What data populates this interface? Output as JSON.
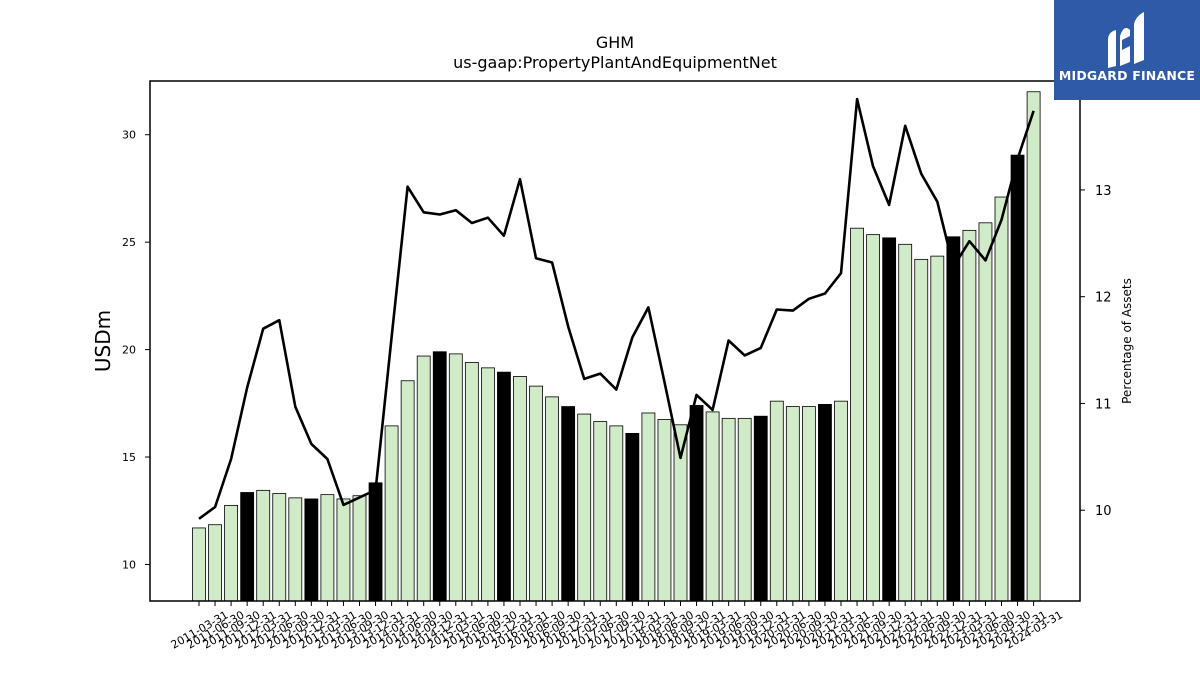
{
  "brand": {
    "name": "MIDGARD FINANCE",
    "logo_icon": "midgard-logo-icon",
    "bg_color": "#2e5aa8"
  },
  "chart_data": {
    "type": "bar",
    "title": "GHM",
    "subtitle": "us-gaap:PropertyPlantAndEquipmentNet",
    "ylabel": "USDm",
    "ylabel_right": "Percentage of Assets",
    "ylim": [
      8.3,
      32.5
    ],
    "ylim_right": [
      9.15,
      14.02
    ],
    "yticks": [
      10,
      15,
      20,
      25,
      30
    ],
    "yticks_right": [
      10,
      11,
      12,
      13
    ],
    "bar_fill": "#d1ebc8",
    "bar_highlight_fill": "#000000",
    "line_color": "#000000",
    "categories": [
      "2011-03-31",
      "2011-06-30",
      "2011-09-30",
      "2011-12-31",
      "2012-03-31",
      "2012-06-30",
      "2012-09-30",
      "2012-12-31",
      "2013-03-31",
      "2013-06-30",
      "2013-09-30",
      "2013-12-31",
      "2014-03-31",
      "2014-06-30",
      "2014-09-30",
      "2014-12-31",
      "2015-03-31",
      "2015-06-30",
      "2015-09-30",
      "2015-12-31",
      "2016-03-31",
      "2016-06-30",
      "2016-09-30",
      "2016-12-31",
      "2017-03-31",
      "2017-06-30",
      "2017-09-30",
      "2017-12-31",
      "2018-03-31",
      "2018-06-30",
      "2018-09-30",
      "2018-12-31",
      "2019-03-31",
      "2019-06-30",
      "2019-09-30",
      "2019-12-31",
      "2020-03-31",
      "2020-06-30",
      "2020-09-30",
      "2020-12-31",
      "2021-03-31",
      "2021-06-30",
      "2021-09-30",
      "2021-12-31",
      "2022-03-31",
      "2022-06-30",
      "2022-09-30",
      "2022-12-31",
      "2023-03-31",
      "2023-06-30",
      "2023-09-30",
      "2023-12-31",
      "2024-03-31"
    ],
    "series": [
      {
        "type": "bar",
        "values": [
          11.7,
          11.85,
          12.75,
          13.35,
          13.45,
          13.3,
          13.1,
          13.05,
          13.25,
          13.05,
          13.2,
          13.8,
          16.45,
          18.55,
          19.7,
          19.9,
          19.8,
          19.4,
          19.15,
          18.95,
          18.75,
          18.3,
          17.8,
          17.35,
          17.0,
          16.65,
          16.45,
          16.1,
          17.05,
          16.75,
          16.5,
          17.4,
          17.1,
          16.8,
          16.8,
          16.9,
          17.6,
          17.35,
          17.35,
          17.45,
          17.6,
          25.65,
          25.35,
          25.2,
          24.9,
          24.2,
          24.35,
          25.25,
          25.55,
          25.9,
          27.1,
          29.05,
          32.0
        ],
        "highlight": [
          false,
          false,
          false,
          true,
          false,
          false,
          false,
          true,
          false,
          false,
          false,
          true,
          false,
          false,
          false,
          true,
          false,
          false,
          false,
          true,
          false,
          false,
          false,
          true,
          false,
          false,
          false,
          true,
          false,
          false,
          false,
          true,
          false,
          false,
          false,
          true,
          false,
          false,
          false,
          true,
          false,
          false,
          false,
          true,
          false,
          false,
          false,
          true,
          false,
          false,
          false,
          true,
          false
        ]
      },
      {
        "type": "line",
        "axis": "right",
        "values": [
          9.92,
          10.03,
          10.48,
          11.15,
          11.7,
          11.78,
          10.97,
          10.62,
          10.48,
          10.05,
          10.12,
          10.19,
          11.62,
          13.03,
          12.79,
          12.77,
          12.81,
          12.69,
          12.74,
          12.57,
          13.1,
          12.36,
          12.32,
          11.72,
          11.23,
          11.28,
          11.13,
          11.62,
          11.9,
          11.2,
          10.49,
          11.08,
          10.94,
          11.59,
          11.45,
          11.52,
          11.88,
          11.87,
          11.98,
          12.03,
          12.22,
          13.85,
          13.22,
          12.86,
          13.6,
          13.15,
          12.89,
          12.28,
          12.52,
          12.34,
          12.72,
          13.29,
          13.74
        ]
      }
    ],
    "grid": false,
    "legend": "none"
  }
}
